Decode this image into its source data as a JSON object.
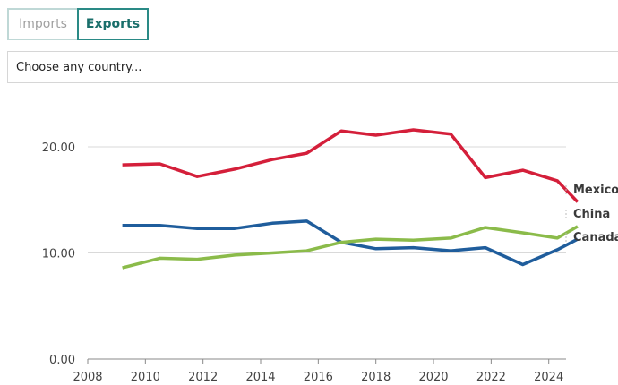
{
  "tabs": [
    {
      "label": "Imports",
      "active": false
    },
    {
      "label": "Exports",
      "active": true
    }
  ],
  "country_select": {
    "placeholder": "Choose any country..."
  },
  "chart_data": {
    "type": "line",
    "title": "",
    "xlabel": "",
    "ylabel": "",
    "xlim": [
      2008,
      2024.6
    ],
    "ylim": [
      0,
      20
    ],
    "x_ticks": [
      "2008",
      "2010",
      "2012",
      "2014",
      "2016",
      "2018",
      "2020",
      "2022",
      "2024"
    ],
    "y_ticks": [
      "0.00",
      "10.00",
      "20.00"
    ],
    "grid": "horizontal",
    "series": [
      {
        "name": "Mexico",
        "color": "#d41f3a",
        "x": [
          2009.2,
          2010.5,
          2011.8,
          2013.1,
          2014.4,
          2015.6,
          2016.8,
          2018.0,
          2019.3,
          2020.6,
          2021.8,
          2023.1,
          2024.3,
          2025.0
        ],
        "y": [
          18.3,
          18.4,
          17.2,
          17.9,
          18.8,
          19.4,
          21.5,
          21.1,
          21.6,
          21.2,
          17.1,
          17.8,
          16.8,
          14.8
        ]
      },
      {
        "name": "China",
        "color": "#1f5d9c",
        "x": [
          2009.2,
          2010.5,
          2011.8,
          2013.1,
          2014.4,
          2015.6,
          2016.8,
          2018.0,
          2019.3,
          2020.6,
          2021.8,
          2023.1,
          2024.3,
          2025.0
        ],
        "y": [
          12.6,
          12.6,
          12.3,
          12.3,
          12.8,
          13.0,
          11.0,
          10.4,
          10.5,
          10.2,
          10.5,
          8.9,
          10.3,
          11.3
        ]
      },
      {
        "name": "Canada",
        "color": "#8bbb4a",
        "x": [
          2009.2,
          2010.5,
          2011.8,
          2013.1,
          2014.4,
          2015.6,
          2016.8,
          2018.0,
          2019.3,
          2020.6,
          2021.8,
          2023.1,
          2024.3,
          2025.0
        ],
        "y": [
          8.6,
          9.5,
          9.4,
          9.8,
          10.0,
          10.2,
          11.0,
          11.3,
          11.2,
          11.4,
          12.4,
          11.9,
          11.4,
          12.5
        ]
      }
    ]
  }
}
